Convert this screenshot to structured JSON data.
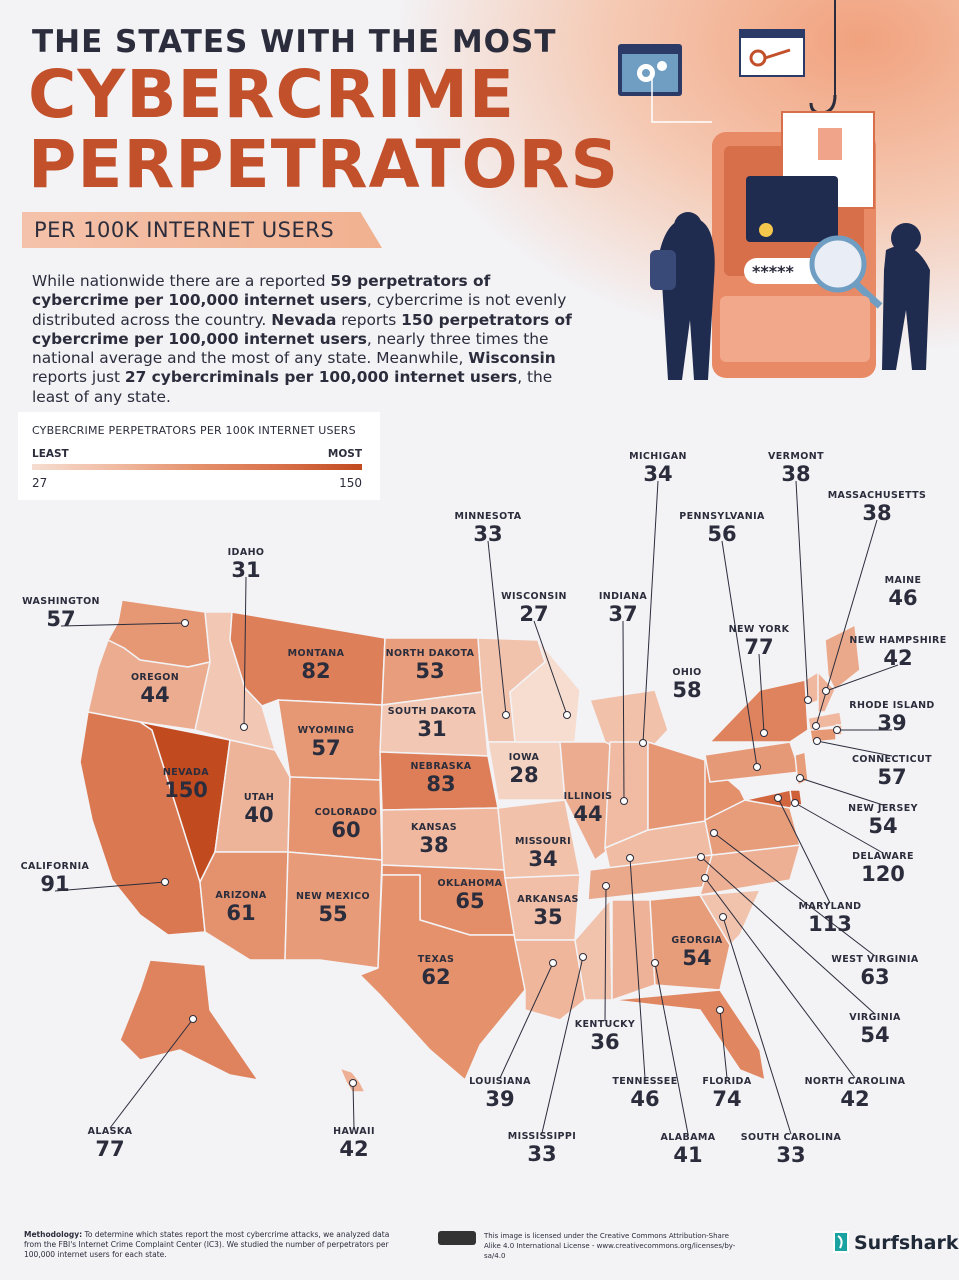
{
  "header": {
    "line1": "THE STATES WITH THE MOST",
    "line2": "CYBERCRIME",
    "line3": "PERPETRATORS",
    "subtitle": "PER 100K INTERNET USERS"
  },
  "intro": {
    "p1": "While nationwide there are a reported ",
    "b1": "59 perpetrators of cybercrime per 100,000 internet users",
    "p2": ", cybercrime is not evenly distributed across the country. ",
    "b2": "Nevada",
    "p3": " reports ",
    "b3": "150 perpetrators of cybercrime per 100,000 internet users",
    "p4": ", nearly three times the national average and the most of any state. Meanwhile, ",
    "b4": "Wisconsin",
    "p5": " reports just ",
    "b5": "27 cybercriminals per 100,000 internet users",
    "p6": ", the least of any state."
  },
  "legend": {
    "title": "CYBERCRIME PERPETRATORS PER 100K INTERNET USERS",
    "least": "LEAST",
    "most": "MOST",
    "min": "27",
    "max": "150"
  },
  "colors": {
    "accent": "#c2502a",
    "scale": [
      "#f6ddd0",
      "#f0bba2",
      "#e4916c",
      "#d8714b",
      "#c24a1f"
    ]
  },
  "states": [
    {
      "id": "washington",
      "name": "WASHINGTON",
      "value": 57
    },
    {
      "id": "oregon",
      "name": "OREGON",
      "value": 44
    },
    {
      "id": "california",
      "name": "CALIFORNIA",
      "value": 91
    },
    {
      "id": "nevada",
      "name": "NEVADA",
      "value": 150
    },
    {
      "id": "idaho",
      "name": "IDAHO",
      "value": 31
    },
    {
      "id": "montana",
      "name": "MONTANA",
      "value": 82
    },
    {
      "id": "wyoming",
      "name": "WYOMING",
      "value": 57
    },
    {
      "id": "utah",
      "name": "UTAH",
      "value": 40
    },
    {
      "id": "arizona",
      "name": "ARIZONA",
      "value": 61
    },
    {
      "id": "colorado",
      "name": "COLORADO",
      "value": 60
    },
    {
      "id": "newmexico",
      "name": "NEW MEXICO",
      "value": 55
    },
    {
      "id": "northdakota",
      "name": "NORTH DAKOTA",
      "value": 53
    },
    {
      "id": "southdakota",
      "name": "SOUTH DAKOTA",
      "value": 31
    },
    {
      "id": "nebraska",
      "name": "NEBRASKA",
      "value": 83
    },
    {
      "id": "kansas",
      "name": "KANSAS",
      "value": 38
    },
    {
      "id": "oklahoma",
      "name": "OKLAHOMA",
      "value": 65
    },
    {
      "id": "texas",
      "name": "TEXAS",
      "value": 62
    },
    {
      "id": "minnesota",
      "name": "MINNESOTA",
      "value": 33
    },
    {
      "id": "iowa",
      "name": "IOWA",
      "value": 28
    },
    {
      "id": "missouri",
      "name": "MISSOURI",
      "value": 34
    },
    {
      "id": "arkansas",
      "name": "ARKANSAS",
      "value": 35
    },
    {
      "id": "louisiana",
      "name": "LOUISIANA",
      "value": 39
    },
    {
      "id": "wisconsin",
      "name": "WISCONSIN",
      "value": 27
    },
    {
      "id": "illinois",
      "name": "ILLINOIS",
      "value": 44
    },
    {
      "id": "mississippi",
      "name": "MISSISSIPPI",
      "value": 33
    },
    {
      "id": "michigan",
      "name": "MICHIGAN",
      "value": 34
    },
    {
      "id": "indiana",
      "name": "INDIANA",
      "value": 37
    },
    {
      "id": "kentucky",
      "name": "KENTUCKY",
      "value": 36
    },
    {
      "id": "tennessee",
      "name": "TENNESSEE",
      "value": 46
    },
    {
      "id": "alabama",
      "name": "ALABAMA",
      "value": 41
    },
    {
      "id": "ohio",
      "name": "OHIO",
      "value": 58
    },
    {
      "id": "georgia",
      "name": "GEORGIA",
      "value": 54
    },
    {
      "id": "florida",
      "name": "FLORIDA",
      "value": 74
    },
    {
      "id": "southcarolina",
      "name": "SOUTH CAROLINA",
      "value": 33
    },
    {
      "id": "northcarolina",
      "name": "NORTH CAROLINA",
      "value": 42
    },
    {
      "id": "virginia",
      "name": "VIRGINIA",
      "value": 54
    },
    {
      "id": "westvirginia",
      "name": "WEST VIRGINIA",
      "value": 63
    },
    {
      "id": "pennsylvania",
      "name": "PENNSYLVANIA",
      "value": 56
    },
    {
      "id": "newyork",
      "name": "NEW YORK",
      "value": 77
    },
    {
      "id": "vermont",
      "name": "VERMONT",
      "value": 38
    },
    {
      "id": "massachusetts",
      "name": "MASSACHUSETTS",
      "value": 38
    },
    {
      "id": "maine",
      "name": "MAINE",
      "value": 46
    },
    {
      "id": "newhampshire",
      "name": "NEW HAMPSHIRE",
      "value": 42
    },
    {
      "id": "rhodeisland",
      "name": "RHODE ISLAND",
      "value": 39
    },
    {
      "id": "connecticut",
      "name": "CONNECTICUT",
      "value": 57
    },
    {
      "id": "newjersey",
      "name": "NEW JERSEY",
      "value": 54
    },
    {
      "id": "delaware",
      "name": "DELAWARE",
      "value": 120
    },
    {
      "id": "maryland",
      "name": "MARYLAND",
      "value": 113
    },
    {
      "id": "alaska",
      "name": "ALASKA",
      "value": 77
    },
    {
      "id": "hawaii",
      "name": "HAWAII",
      "value": 42
    }
  ],
  "footer": {
    "methodology_label": "Methodology:",
    "methodology_text": " To determine which states report the most cybercrime attacks, we analyzed data from the FBI's Internet Crime Complaint Center (IC3). We studied the number of perpetrators per 100,000 internet users for each state.",
    "license": "This image is licensed under the Creative Commons Attribution-Share Alike 4.0 International License - www.creativecommons.org/licenses/by-sa/4.0",
    "brand": "Surfshark"
  }
}
